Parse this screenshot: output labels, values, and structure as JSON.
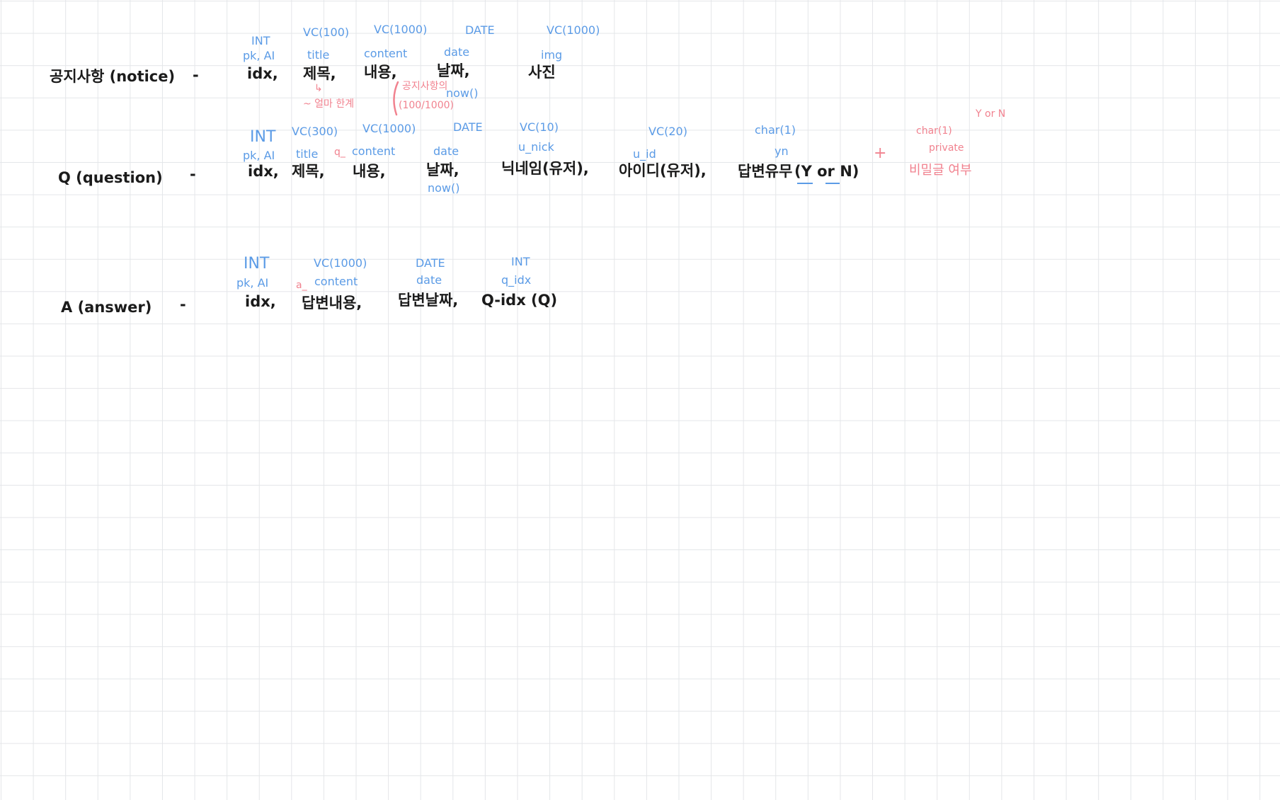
{
  "colors": {
    "ink": "#1b1b1b",
    "blue": "#5b9be6",
    "pink": "#f1828f",
    "grid": "#e4e6e9"
  },
  "notice": {
    "title": "공지사항 (notice)",
    "dash": "-",
    "fields": {
      "idx": {
        "type": "INT",
        "attr": "pk, AI",
        "name": "idx,"
      },
      "title": {
        "type": "VC(100)",
        "attr": "title",
        "name": "제목,"
      },
      "content": {
        "type": "VC(1000)",
        "attr": "content",
        "name": "내용,"
      },
      "date": {
        "type": "DATE",
        "attr": "date",
        "name": "날짜,"
      },
      "img": {
        "type": "VC(1000)",
        "attr": "img",
        "name": "사진"
      }
    },
    "notes": {
      "arrow": "↳",
      "title_limit": "~ 얼마 한계",
      "summary": "공지사항의",
      "vc_len": "(100/1000)",
      "now": "now()"
    }
  },
  "question": {
    "title": "Q (question)",
    "dash": "-",
    "fields": {
      "idx": {
        "type": "INT",
        "attr": "pk, AI",
        "name": "idx,"
      },
      "title": {
        "type": "VC(300)",
        "attr": "title",
        "name": "제목,"
      },
      "content": {
        "type": "VC(1000)",
        "prefix": "q_",
        "attr": "content",
        "name": "내용,"
      },
      "date": {
        "type": "DATE",
        "attr": "date",
        "name": "날짜,",
        "note": "now()"
      },
      "nick": {
        "type": "VC(10)",
        "attr": "u_nick",
        "name": "닉네임(유저),"
      },
      "uid": {
        "type": "VC(20)",
        "attr": "u_id",
        "name": "아이디(유저),"
      },
      "answered": {
        "type": "char(1)",
        "attr": "yn",
        "name": "답변유무",
        "value": "(Y or N)"
      }
    },
    "extra": {
      "plus": "+",
      "yorn": "Y or N",
      "type": "char(1)",
      "attr": "private",
      "name": "비밀글 여부"
    }
  },
  "answer": {
    "title": "A (answer)",
    "dash": "-",
    "fields": {
      "idx": {
        "type": "INT",
        "attr": "pk, AI",
        "name": "idx,"
      },
      "content": {
        "type": "VC(1000)",
        "prefix": "a_",
        "attr": "content",
        "name": "답변내용,"
      },
      "date": {
        "type": "DATE",
        "attr": "date",
        "name": "답변날짜,"
      },
      "qidx": {
        "type": "INT",
        "attr": "q_idx",
        "name": "Q-idx (Q)"
      }
    }
  }
}
